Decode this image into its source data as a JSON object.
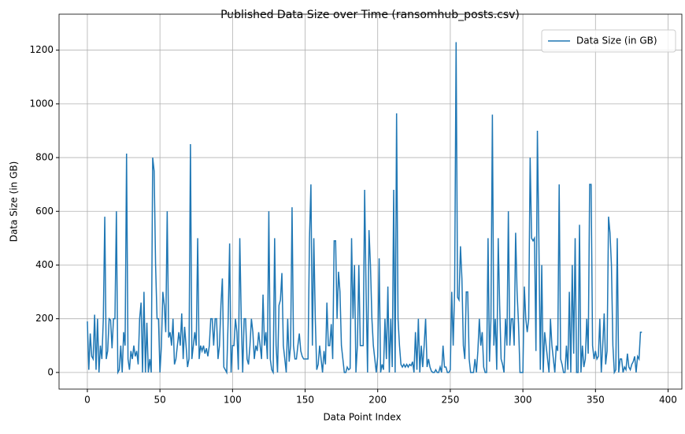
{
  "chart_data": {
    "type": "line",
    "title": "Published Data Size over Time (ransomhub_posts.csv)",
    "x_label": "Data Point Index",
    "y_label": "Data Size (in GB)",
    "series": [
      {
        "name": "Data Size (in GB)",
        "color": "#1f77b4",
        "values": [
          190,
          10,
          145,
          60,
          50,
          215,
          10,
          200,
          0,
          100,
          50,
          200,
          580,
          50,
          80,
          200,
          195,
          90,
          200,
          200,
          600,
          0,
          10,
          100,
          0,
          150,
          100,
          815,
          50,
          10,
          80,
          50,
          100,
          60,
          80,
          30,
          200,
          260,
          0,
          300,
          0,
          185,
          0,
          50,
          0,
          800,
          750,
          400,
          200,
          200,
          0,
          100,
          300,
          250,
          150,
          600,
          130,
          150,
          100,
          200,
          30,
          50,
          100,
          150,
          100,
          220,
          50,
          170,
          100,
          20,
          50,
          850,
          50,
          100,
          150,
          100,
          500,
          50,
          100,
          80,
          100,
          70,
          90,
          60,
          100,
          200,
          200,
          100,
          200,
          200,
          50,
          100,
          250,
          350,
          20,
          10,
          0,
          200,
          480,
          0,
          100,
          100,
          200,
          150,
          10,
          500,
          200,
          0,
          200,
          200,
          50,
          30,
          100,
          200,
          150,
          50,
          100,
          80,
          150,
          100,
          50,
          290,
          100,
          150,
          50,
          600,
          50,
          10,
          0,
          500,
          100,
          0,
          250,
          270,
          370,
          100,
          50,
          0,
          200,
          40,
          100,
          615,
          100,
          50,
          50,
          100,
          145,
          80,
          60,
          50,
          50,
          50,
          50,
          500,
          700,
          100,
          500,
          200,
          10,
          30,
          100,
          50,
          0,
          80,
          30,
          260,
          100,
          100,
          180,
          50,
          490,
          490,
          200,
          375,
          300,
          100,
          50,
          0,
          0,
          20,
          10,
          15,
          500,
          200,
          400,
          0,
          100,
          400,
          100,
          100,
          100,
          680,
          300,
          0,
          530,
          400,
          200,
          100,
          50,
          0,
          60,
          425,
          0,
          30,
          10,
          200,
          50,
          320,
          0,
          200,
          20,
          680,
          0,
          965,
          200,
          100,
          30,
          20,
          30,
          20,
          30,
          20,
          30,
          25,
          40,
          0,
          150,
          10,
          200,
          0,
          100,
          20,
          100,
          200,
          20,
          50,
          20,
          5,
          0,
          0,
          10,
          0,
          0,
          20,
          0,
          100,
          20,
          20,
          0,
          0,
          10,
          300,
          100,
          310,
          1230,
          280,
          270,
          470,
          350,
          100,
          50,
          300,
          300,
          50,
          0,
          0,
          0,
          50,
          0,
          80,
          200,
          100,
          150,
          20,
          0,
          0,
          500,
          40,
          200,
          960,
          100,
          200,
          10,
          500,
          250,
          50,
          30,
          0,
          200,
          100,
          600,
          100,
          200,
          200,
          100,
          520,
          300,
          180,
          0,
          0,
          0,
          320,
          200,
          150,
          200,
          800,
          500,
          490,
          500,
          80,
          900,
          500,
          10,
          400,
          0,
          150,
          100,
          50,
          0,
          200,
          100,
          50,
          0,
          100,
          80,
          700,
          50,
          30,
          0,
          0,
          100,
          10,
          300,
          0,
          400,
          70,
          500,
          0,
          0,
          550,
          0,
          100,
          20,
          50,
          200,
          70,
          700,
          700,
          100,
          50,
          80,
          50,
          60,
          200,
          0,
          100,
          220,
          30,
          80,
          580,
          520,
          400,
          100,
          0,
          10,
          500,
          0,
          50,
          50,
          0,
          20,
          10,
          70,
          20,
          10,
          30,
          40,
          60,
          0,
          60,
          50,
          150,
          150
        ]
      }
    ],
    "xlim": [
      -19.5,
      409.5
    ],
    "ylim": [
      -62,
      1334
    ],
    "xticks": [
      0,
      50,
      100,
      150,
      200,
      250,
      300,
      350,
      400
    ],
    "yticks": [
      0,
      200,
      400,
      600,
      800,
      1000,
      1200
    ],
    "grid": true,
    "legend": "upper right"
  }
}
